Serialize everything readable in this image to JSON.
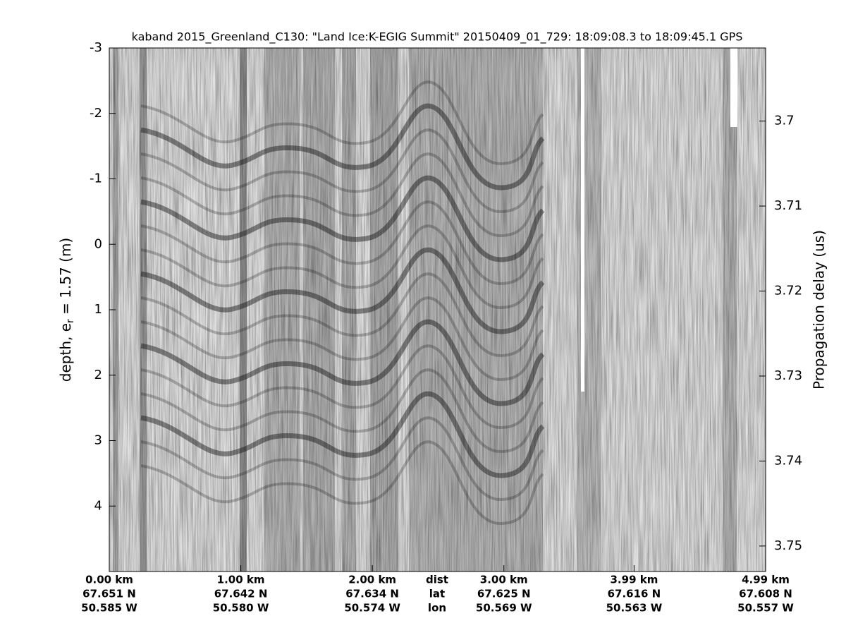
{
  "chart_data": {
    "type": "image",
    "title": "kaband 2015_Greenland_C130: \"Land Ice:K-EGIG Summit\"  20150409_01_729: 18:09:08.3 to 18:09:45.1 GPS",
    "ylabel": {
      "text": "depth, e",
      "subscript": "r",
      "suffix": " = 1.57 (m)"
    },
    "y2label": "Propagation delay (us)",
    "xlim": [
      0,
      4.99
    ],
    "xticks": [
      {
        "value": 0,
        "label": "0.00 km"
      },
      {
        "value": 1,
        "label": "1.00 km"
      },
      {
        "value": 2,
        "label": "2.00 km"
      },
      {
        "value": 3,
        "label": "3.00 km"
      },
      {
        "value": 3.99,
        "label": "3.99 km"
      },
      {
        "value": 4.99,
        "label": "4.99 km"
      }
    ],
    "lat_labels": [
      "67.651 N",
      "67.642 N",
      "67.634 N",
      "67.625 N",
      "67.616 N",
      "67.608 N"
    ],
    "lon_labels": [
      "50.585 W",
      "50.580 W",
      "50.574 W",
      "50.569 W",
      "50.563 W",
      "50.557 W"
    ],
    "x_row_labels": [
      "dist",
      "lat",
      "lon"
    ],
    "ylim": [
      -3,
      5
    ],
    "yticks": [
      -3,
      -2,
      -1,
      0,
      1,
      2,
      3,
      4
    ],
    "y2lim": [
      3.6914,
      3.753
    ],
    "y2ticks": [
      3.7,
      3.71,
      3.72,
      3.73,
      3.74,
      3.75
    ],
    "colormap": "gray"
  }
}
